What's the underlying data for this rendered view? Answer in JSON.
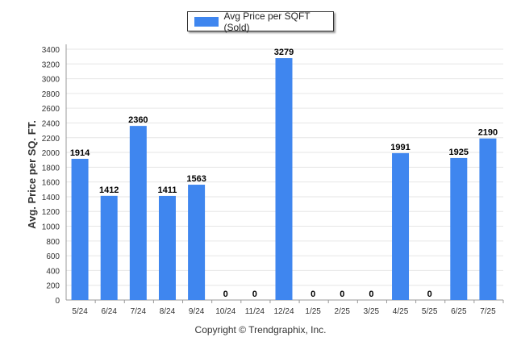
{
  "legend": {
    "label": "Avg Price per SQFT (Sold)"
  },
  "footer": {
    "copyright": "Copyright © Trendgraphix, Inc."
  },
  "colors": {
    "bar": "#3f86ef",
    "grid": "#e6e6e6",
    "axis": "#999999"
  },
  "chart_data": {
    "type": "bar",
    "title": "",
    "xlabel": "",
    "ylabel": "Avg. Price per SQ. FT.",
    "ylim": [
      0,
      3400
    ],
    "yticks": [
      0,
      200,
      400,
      600,
      800,
      1000,
      1200,
      1400,
      1600,
      1800,
      2000,
      2200,
      2400,
      2600,
      2800,
      3000,
      3200,
      3400
    ],
    "grid": true,
    "legend_position": "top-center",
    "categories": [
      "5/24",
      "6/24",
      "7/24",
      "8/24",
      "9/24",
      "10/24",
      "11/24",
      "12/24",
      "1/25",
      "2/25",
      "3/25",
      "4/25",
      "5/25",
      "6/25",
      "7/25"
    ],
    "series": [
      {
        "name": "Avg Price per SQFT (Sold)",
        "values": [
          1914,
          1412,
          2360,
          1411,
          1563,
          0,
          0,
          3279,
          0,
          0,
          0,
          1991,
          0,
          1925,
          2190
        ]
      }
    ]
  }
}
